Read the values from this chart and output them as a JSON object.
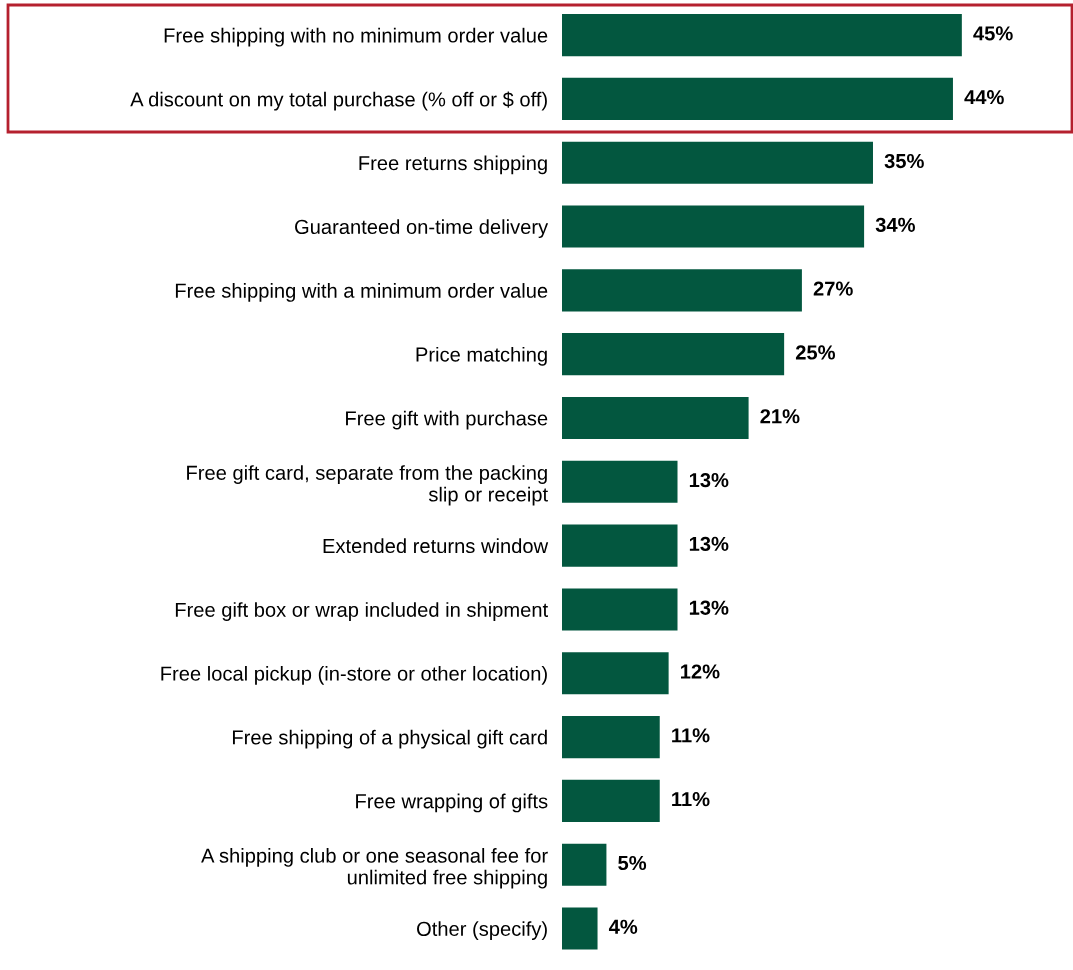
{
  "chart_data": {
    "type": "bar",
    "orientation": "horizontal",
    "categories": [
      "Free shipping with no minimum order value",
      "A discount on my total purchase (% off or $ off)",
      "Free returns shipping",
      "Guaranteed on-time delivery",
      "Free shipping with a minimum order value",
      "Price matching",
      "Free gift with purchase",
      "Free gift card, separate from the packing\nslip or receipt",
      "Extended returns window",
      "Free gift box or wrap included in shipment",
      "Free local pickup (in-store or other location)",
      "Free shipping of a physical gift card",
      "Free wrapping of gifts",
      "A shipping club or one seasonal fee for\nunlimited free shipping",
      "Other (specify)"
    ],
    "values": [
      45,
      44,
      35,
      34,
      27,
      25,
      21,
      13,
      13,
      13,
      12,
      11,
      11,
      5,
      4
    ],
    "value_labels": [
      "45%",
      "44%",
      "35%",
      "34%",
      "27%",
      "25%",
      "21%",
      "13%",
      "13%",
      "13%",
      "12%",
      "11%",
      "11%",
      "5%",
      "4%"
    ],
    "color": "#03573f",
    "tick_labels": "y",
    "grid": false,
    "legend": false
  }
}
